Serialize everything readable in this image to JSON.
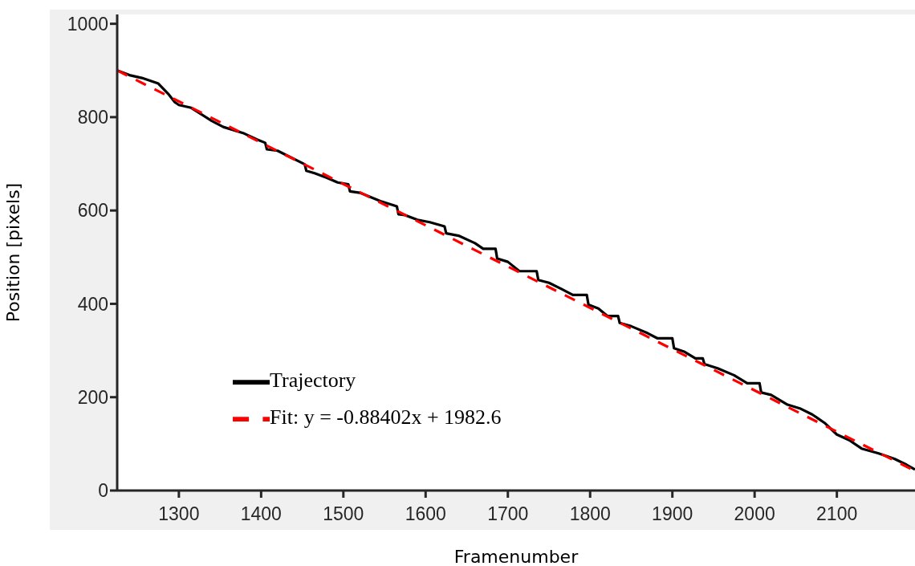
{
  "chart_data": {
    "type": "line",
    "xlabel": "Framenumber",
    "ylabel": "Position [pixels]",
    "xlim": [
      1225,
      2195
    ],
    "xticks": [
      1300,
      1400,
      1500,
      1600,
      1700,
      1800,
      1900,
      2000,
      2100
    ],
    "ylim": [
      0,
      1020
    ],
    "yticks": [
      0,
      200,
      400,
      600,
      800,
      1000
    ],
    "grid": false,
    "legend": "bottom left",
    "marker": "none",
    "series": [
      {
        "name": "Trajectory",
        "color": "#000000",
        "line_style": "solid",
        "x": [
          1225,
          1240,
          1255,
          1275,
          1287,
          1295,
          1300,
          1315,
          1340,
          1354,
          1378,
          1395,
          1405,
          1407,
          1420,
          1453,
          1455,
          1465,
          1480,
          1493,
          1506,
          1508,
          1520,
          1545,
          1565,
          1567,
          1575,
          1590,
          1605,
          1623,
          1625,
          1640,
          1660,
          1670,
          1685,
          1687,
          1700,
          1714,
          1735,
          1737,
          1750,
          1765,
          1779,
          1796,
          1798,
          1810,
          1821,
          1834,
          1836,
          1850,
          1870,
          1882,
          1900,
          1902,
          1915,
          1928,
          1937,
          1939,
          1955,
          1975,
          1991,
          2006,
          2008,
          2020,
          2040,
          2055,
          2070,
          2085,
          2100,
          2115,
          2130,
          2150,
          2170,
          2185,
          2195
        ],
        "values": [
          900,
          890,
          884,
          872,
          850,
          832,
          826,
          820,
          792,
          779,
          766,
          752,
          745,
          731,
          728,
          699,
          685,
          680,
          670,
          660,
          656,
          641,
          638,
          620,
          609,
          592,
          590,
          580,
          575,
          566,
          551,
          546,
          530,
          518,
          518,
          497,
          490,
          470,
          470,
          451,
          445,
          432,
          419,
          419,
          398,
          390,
          374,
          374,
          359,
          352,
          337,
          326,
          326,
          305,
          297,
          283,
          283,
          271,
          262,
          247,
          230,
          230,
          210,
          205,
          184,
          176,
          163,
          145,
          120,
          108,
          90,
          80,
          68,
          55,
          45
        ]
      },
      {
        "name": "Fit: y = -0.88402x + 1982.6",
        "color": "#ff0000",
        "line_style": "dashed",
        "x": [
          1225,
          2195
        ],
        "values": [
          900,
          42
        ]
      }
    ]
  }
}
